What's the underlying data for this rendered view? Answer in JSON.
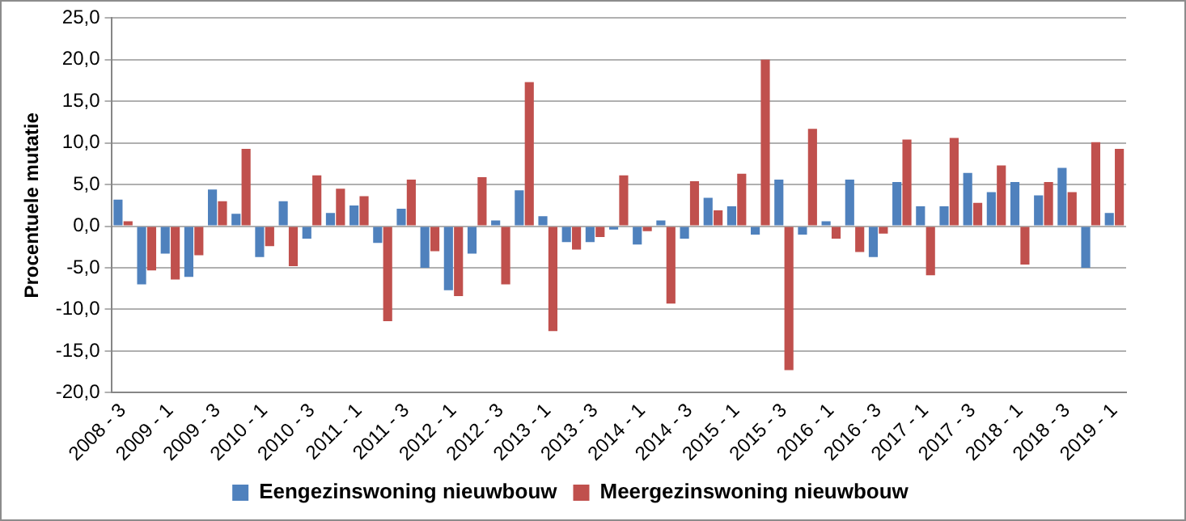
{
  "chart_data": {
    "type": "bar",
    "ylabel": "Procentuele mutatie",
    "categories": [
      "2008 - 3",
      null,
      "2009 - 1",
      null,
      "2009 - 3",
      null,
      "2010 - 1",
      null,
      "2010 - 3",
      null,
      "2011 - 1",
      null,
      "2011 - 3",
      null,
      "2012 - 1",
      null,
      "2012 - 3",
      null,
      "2013 - 1",
      null,
      "2013 - 3",
      null,
      "2014 - 1",
      null,
      "2014 - 3",
      null,
      "2015 - 1",
      null,
      "2015 - 3",
      null,
      "2016 - 1",
      null,
      "2016 - 3",
      null,
      "2017 - 1",
      null,
      "2017 - 3",
      null,
      "2018 - 1",
      null,
      "2018 - 3",
      null,
      "2019 - 1"
    ],
    "series": [
      {
        "name": "Eengezinswoning nieuwbouw",
        "color": "#4f81bd",
        "values": [
          3.2,
          -7.0,
          -3.3,
          -6.1,
          4.4,
          1.5,
          -3.7,
          3.0,
          -1.5,
          1.6,
          2.5,
          -2.0,
          2.1,
          -5.0,
          -7.7,
          -3.3,
          0.7,
          4.3,
          1.2,
          -1.9,
          -1.9,
          -0.4,
          -2.2,
          0.7,
          -1.5,
          3.4,
          2.4,
          -1.0,
          5.6,
          -1.0,
          0.6,
          5.6,
          -3.7,
          5.3,
          2.4,
          2.4,
          6.4,
          4.1,
          5.3,
          3.7,
          7.0,
          -5.0,
          1.6
        ]
      },
      {
        "name": "Meergezinswoning nieuwbouw",
        "color": "#c0504d",
        "values": [
          0.6,
          -5.3,
          -6.4,
          -3.5,
          3.0,
          9.3,
          -2.4,
          -4.8,
          6.1,
          4.5,
          3.6,
          -11.4,
          5.6,
          -3.0,
          -8.4,
          5.9,
          -7.0,
          17.3,
          -12.6,
          -2.8,
          -1.3,
          6.1,
          -0.6,
          -9.3,
          5.4,
          1.9,
          6.3,
          20.0,
          -17.3,
          11.7,
          -1.5,
          -3.1,
          -0.9,
          10.4,
          -5.9,
          10.6,
          2.8,
          7.3,
          -4.6,
          5.3,
          4.1,
          10.1,
          9.3
        ]
      }
    ],
    "ylim": [
      -20,
      25
    ],
    "yticks": [
      {
        "value": -20,
        "label": "-20,0"
      },
      {
        "value": -15,
        "label": "-15,0"
      },
      {
        "value": -10,
        "label": "-10,0"
      },
      {
        "value": -5,
        "label": "-5,0"
      },
      {
        "value": 0,
        "label": "0,0"
      },
      {
        "value": 5,
        "label": "5,0"
      },
      {
        "value": 10,
        "label": "10,0"
      },
      {
        "value": 15,
        "label": "15,0"
      },
      {
        "value": 20,
        "label": "20,0"
      },
      {
        "value": 25,
        "label": "25,0"
      }
    ],
    "grid": "y",
    "legend": "bottom"
  }
}
